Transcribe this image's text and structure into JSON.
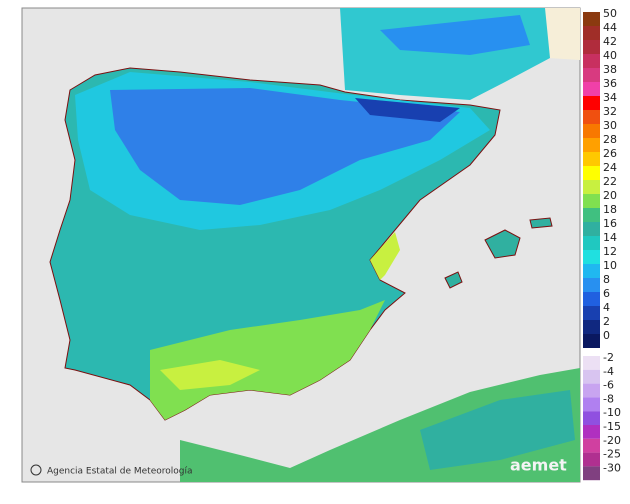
{
  "legend": {
    "positive": [
      {
        "value": 50,
        "color": "#8b3a10"
      },
      {
        "value": 44,
        "color": "#a02e28"
      },
      {
        "value": 42,
        "color": "#b02c3c"
      },
      {
        "value": 40,
        "color": "#c83060"
      },
      {
        "value": 38,
        "color": "#d83a80"
      },
      {
        "value": 36,
        "color": "#f040a8"
      },
      {
        "value": 34,
        "color": "#ff0000"
      },
      {
        "value": 32,
        "color": "#f05010"
      },
      {
        "value": 30,
        "color": "#f87800"
      },
      {
        "value": 28,
        "color": "#ffa000"
      },
      {
        "value": 26,
        "color": "#ffc800"
      },
      {
        "value": 24,
        "color": "#ffff00"
      },
      {
        "value": 22,
        "color": "#c8f040"
      },
      {
        "value": 20,
        "color": "#80e050"
      },
      {
        "value": 18,
        "color": "#40c080"
      },
      {
        "value": 16,
        "color": "#30b0a0"
      },
      {
        "value": 14,
        "color": "#20c8c0"
      },
      {
        "value": 12,
        "color": "#20e0e0"
      },
      {
        "value": 10,
        "color": "#20b8f0"
      },
      {
        "value": 8,
        "color": "#2890f0"
      },
      {
        "value": 6,
        "color": "#2060e0"
      },
      {
        "value": 4,
        "color": "#1840b0"
      },
      {
        "value": 2,
        "color": "#102880"
      },
      {
        "value": 0,
        "color": "#0a1860"
      }
    ],
    "negative": [
      {
        "value": -2,
        "color": "#ece0f4"
      },
      {
        "value": -4,
        "color": "#d8c4f0"
      },
      {
        "value": -6,
        "color": "#c8a4f0"
      },
      {
        "value": -8,
        "color": "#b080f0"
      },
      {
        "value": -10,
        "color": "#9050e0"
      },
      {
        "value": -15,
        "color": "#b030c0"
      },
      {
        "value": -20,
        "color": "#d040a0"
      },
      {
        "value": -25,
        "color": "#b03090"
      },
      {
        "value": -30,
        "color": "#804080"
      }
    ]
  },
  "credit": "Agencia Estatal de Meteorología",
  "logo": "aemet"
}
